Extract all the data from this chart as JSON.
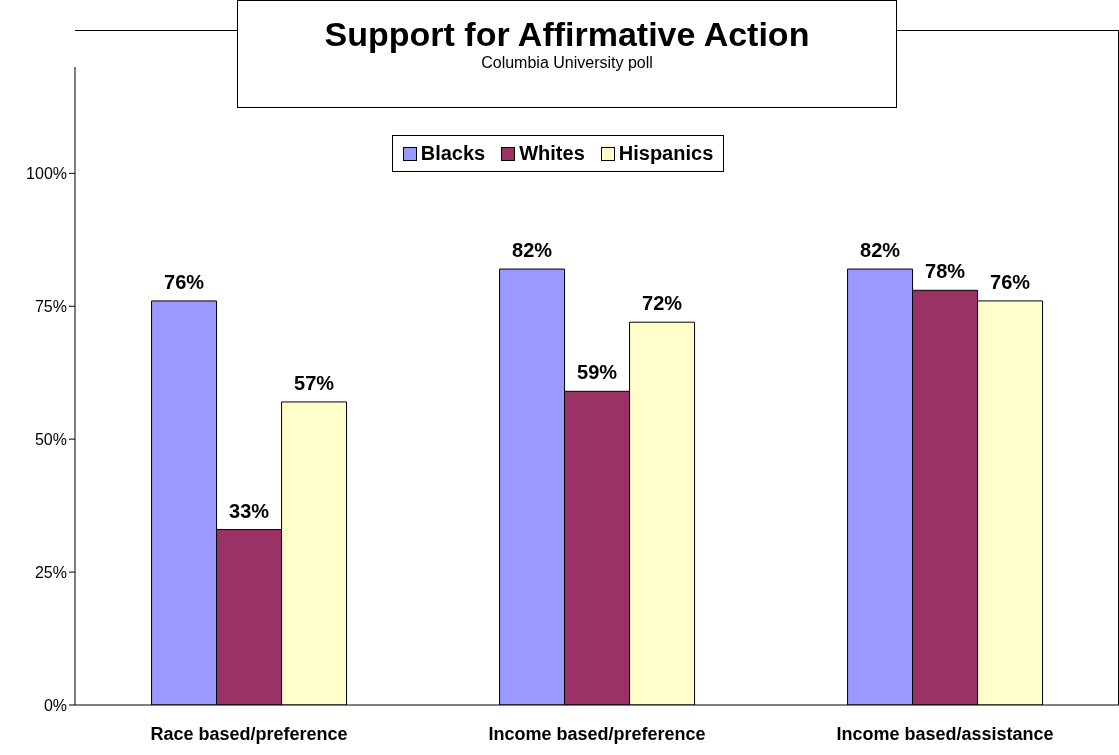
{
  "chart_data": {
    "type": "bar",
    "title": "Support for Affirmative Action",
    "subtitle": "Columbia University poll",
    "categories": [
      "Race based/preference",
      "Income based/preference",
      "Income based/assistance"
    ],
    "series": [
      {
        "name": "Blacks",
        "color": "#9999ff",
        "values": [
          76,
          82,
          82
        ],
        "value_labels": [
          "76%",
          "82%",
          "82%"
        ]
      },
      {
        "name": "Whites",
        "color": "#993366",
        "values": [
          33,
          59,
          78
        ],
        "value_labels": [
          "33%",
          "59%",
          "78%"
        ]
      },
      {
        "name": "Hispanics",
        "color": "#ffffcc",
        "values": [
          57,
          72,
          76
        ],
        "value_labels": [
          "57%",
          "72%",
          "76%"
        ]
      }
    ],
    "ylim": [
      0,
      120
    ],
    "yticks": [
      {
        "value": 0,
        "label": "0%"
      },
      {
        "value": 25,
        "label": "25%"
      },
      {
        "value": 50,
        "label": "50%"
      },
      {
        "value": 75,
        "label": "75%"
      },
      {
        "value": 100,
        "label": "100%"
      }
    ],
    "grid": false,
    "legend": "top"
  }
}
